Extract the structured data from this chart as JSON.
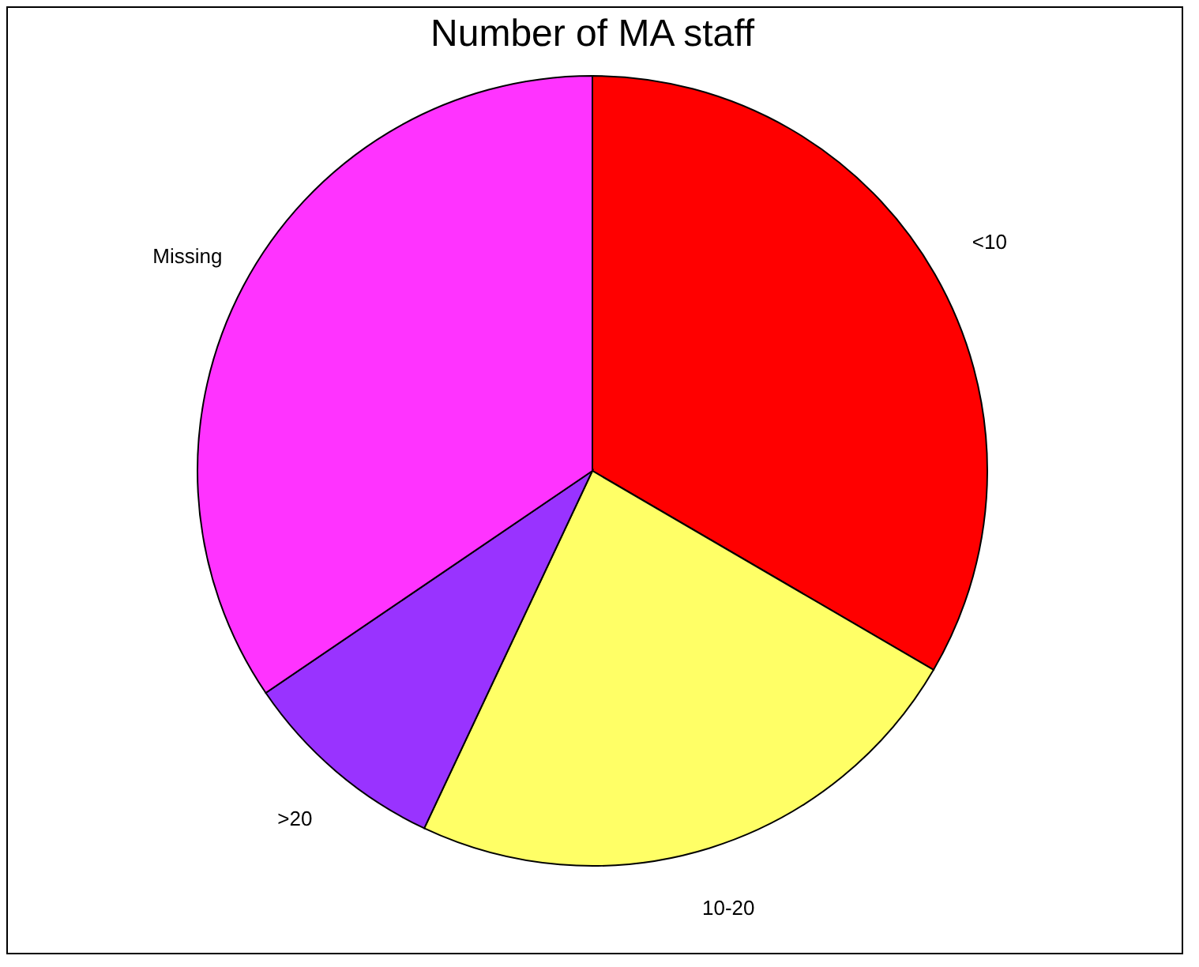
{
  "chart_data": {
    "type": "pie",
    "title": "Number of MA staff",
    "categories": [
      "<10",
      "10-20",
      ">20",
      "Missing"
    ],
    "values": [
      33.4,
      23.6,
      8.5,
      34.5
    ],
    "colors": [
      "#ff0000",
      "#ffff66",
      "#9933ff",
      "#ff33ff"
    ],
    "legend": false
  }
}
